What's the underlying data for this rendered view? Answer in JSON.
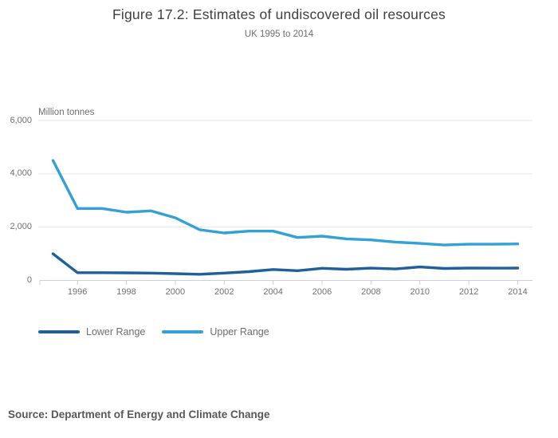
{
  "title": "Figure 17.2: Estimates of undiscovered oil resources",
  "subtitle": "UK 1995 to 2014",
  "y_axis_title": "Million tonnes",
  "source": "Source: Department of Energy and Climate Change",
  "colors": {
    "lower_range": "#1e5f9c",
    "upper_range": "#33a1d6",
    "gridline": "#e6e6e6",
    "axis_line": "#c9d0dc",
    "title_text": "#3f4041",
    "muted_text": "#6d6d72",
    "source_text": "#58585b"
  },
  "chart_data": {
    "type": "line",
    "title": "Figure 17.2: Estimates of undiscovered oil resources",
    "subtitle": "UK 1995 to 2014",
    "xlabel": "",
    "ylabel": "Million tonnes",
    "ylim": [
      0,
      6000
    ],
    "grid": true,
    "legend_position": "bottom-left",
    "x": [
      1995,
      1996,
      1997,
      1998,
      1999,
      2000,
      2001,
      2002,
      2003,
      2004,
      2005,
      2006,
      2007,
      2008,
      2009,
      2010,
      2011,
      2012,
      2013,
      2014
    ],
    "xticks": [
      {
        "value": 1996,
        "label": "1996"
      },
      {
        "value": 1998,
        "label": "1998"
      },
      {
        "value": 2000,
        "label": "2000"
      },
      {
        "value": 2002,
        "label": "2002"
      },
      {
        "value": 2004,
        "label": "2004"
      },
      {
        "value": 2006,
        "label": "2006"
      },
      {
        "value": 2008,
        "label": "2008"
      },
      {
        "value": 2010,
        "label": "2010"
      },
      {
        "value": 2012,
        "label": "2012"
      },
      {
        "value": 2014,
        "label": "2014"
      }
    ],
    "yticks": [
      {
        "value": 0,
        "label": "0"
      },
      {
        "value": 2000,
        "label": "2,000"
      },
      {
        "value": 4000,
        "label": "4,000"
      },
      {
        "value": 6000,
        "label": "6,000"
      }
    ],
    "series": [
      {
        "name": "Lower Range",
        "color": "#1e5f9c",
        "values": [
          1000,
          290,
          290,
          285,
          275,
          255,
          230,
          275,
          330,
          410,
          365,
          455,
          420,
          460,
          430,
          505,
          450,
          465,
          460,
          465
        ]
      },
      {
        "name": "Upper Range",
        "color": "#33a1d6",
        "values": [
          4500,
          2700,
          2700,
          2560,
          2610,
          2350,
          1900,
          1780,
          1850,
          1850,
          1610,
          1660,
          1560,
          1520,
          1440,
          1390,
          1330,
          1360,
          1360,
          1370
        ]
      }
    ]
  }
}
